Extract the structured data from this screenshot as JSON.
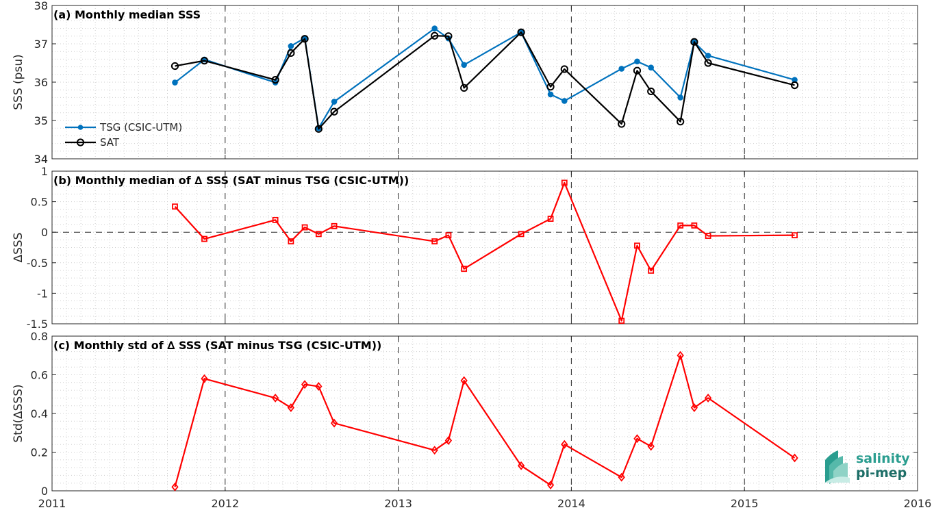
{
  "chart_data": [
    {
      "type": "line",
      "title": "(a) Monthly median SSS",
      "xlabel": "",
      "ylabel": "SSS (psu)",
      "xlim": [
        2011,
        2016
      ],
      "ylim": [
        34,
        38
      ],
      "xticks": [
        "2011",
        "2012",
        "2013",
        "2014",
        "2015",
        "2016"
      ],
      "yticks": [
        "34",
        "35",
        "36",
        "37",
        "38"
      ],
      "grid": "dotted minor",
      "legend_position": "bottom-left",
      "series": [
        {
          "name": "TSG (CSIC-UTM)",
          "color": "#0072BD",
          "marker": "dot",
          "x": [
            2011.71,
            2011.88,
            2012.29,
            2012.38,
            2012.46,
            2012.54,
            2012.63,
            2013.21,
            2013.29,
            2013.38,
            2013.71,
            2013.88,
            2013.96,
            2014.29,
            2014.38,
            2014.46,
            2014.63,
            2014.71,
            2014.79,
            2015.29
          ],
          "y": [
            35.99,
            36.59,
            35.99,
            36.94,
            37.15,
            34.8,
            35.49,
            37.4,
            37.14,
            36.45,
            37.3,
            35.68,
            35.51,
            36.35,
            36.54,
            36.38,
            35.6,
            37.04,
            36.69,
            36.06
          ]
        },
        {
          "name": "SAT",
          "color": "#000000",
          "marker": "circle",
          "x": [
            2011.71,
            2011.88,
            2012.29,
            2012.38,
            2012.46,
            2012.54,
            2012.63,
            2013.21,
            2013.29,
            2013.38,
            2013.71,
            2013.88,
            2013.96,
            2014.29,
            2014.38,
            2014.46,
            2014.63,
            2014.71,
            2014.79,
            2015.29
          ],
          "y": [
            36.42,
            36.56,
            36.06,
            36.76,
            37.13,
            34.78,
            35.23,
            37.21,
            37.2,
            35.85,
            37.3,
            35.88,
            36.34,
            34.91,
            36.3,
            35.76,
            34.97,
            37.05,
            36.5,
            35.92
          ]
        }
      ]
    },
    {
      "type": "line",
      "title": "(b) Monthly median of ∆ SSS (SAT minus TSG (CSIC-UTM))",
      "xlabel": "",
      "ylabel": "∆SSS",
      "xlim": [
        2011,
        2016
      ],
      "ylim": [
        -1.5,
        1
      ],
      "yticks": [
        "-1.5",
        "-1",
        "-0.5",
        "0",
        "0.5",
        "1"
      ],
      "grid": "dotted minor",
      "reference_line": 0,
      "series": [
        {
          "color": "#FF0000",
          "marker": "square",
          "x": [
            2011.71,
            2011.88,
            2012.29,
            2012.38,
            2012.46,
            2012.54,
            2012.63,
            2013.21,
            2013.29,
            2013.38,
            2013.71,
            2013.88,
            2013.96,
            2014.29,
            2014.38,
            2014.46,
            2014.63,
            2014.71,
            2014.79,
            2015.29
          ],
          "y": [
            0.42,
            -0.11,
            0.2,
            -0.15,
            0.08,
            -0.03,
            0.1,
            -0.15,
            -0.05,
            -0.6,
            -0.03,
            0.22,
            0.81,
            -1.45,
            -0.22,
            -0.63,
            0.11,
            0.11,
            -0.06,
            -0.05
          ]
        }
      ]
    },
    {
      "type": "line",
      "title": "(c) Monthly std of ∆ SSS (SAT minus TSG (CSIC-UTM))",
      "xlabel": "",
      "ylabel": "Std(∆SSS)",
      "xlim": [
        2011,
        2016
      ],
      "ylim": [
        0,
        0.8
      ],
      "yticks": [
        "0",
        "0.2",
        "0.4",
        "0.6",
        "0.8"
      ],
      "grid": "dotted minor",
      "series": [
        {
          "color": "#FF0000",
          "marker": "diamond",
          "x": [
            2011.71,
            2011.88,
            2012.29,
            2012.38,
            2012.46,
            2012.54,
            2012.63,
            2013.21,
            2013.29,
            2013.38,
            2013.71,
            2013.88,
            2013.96,
            2014.29,
            2014.38,
            2014.46,
            2014.63,
            2014.71,
            2014.79,
            2015.29
          ],
          "y": [
            0.02,
            0.58,
            0.48,
            0.43,
            0.55,
            0.54,
            0.35,
            0.21,
            0.26,
            0.57,
            0.13,
            0.03,
            0.24,
            0.07,
            0.27,
            0.23,
            0.7,
            0.43,
            0.48,
            0.17
          ]
        }
      ]
    }
  ],
  "logo": {
    "line1": "salinity",
    "line2": "pi-mep",
    "color": "#2a9d8f"
  }
}
